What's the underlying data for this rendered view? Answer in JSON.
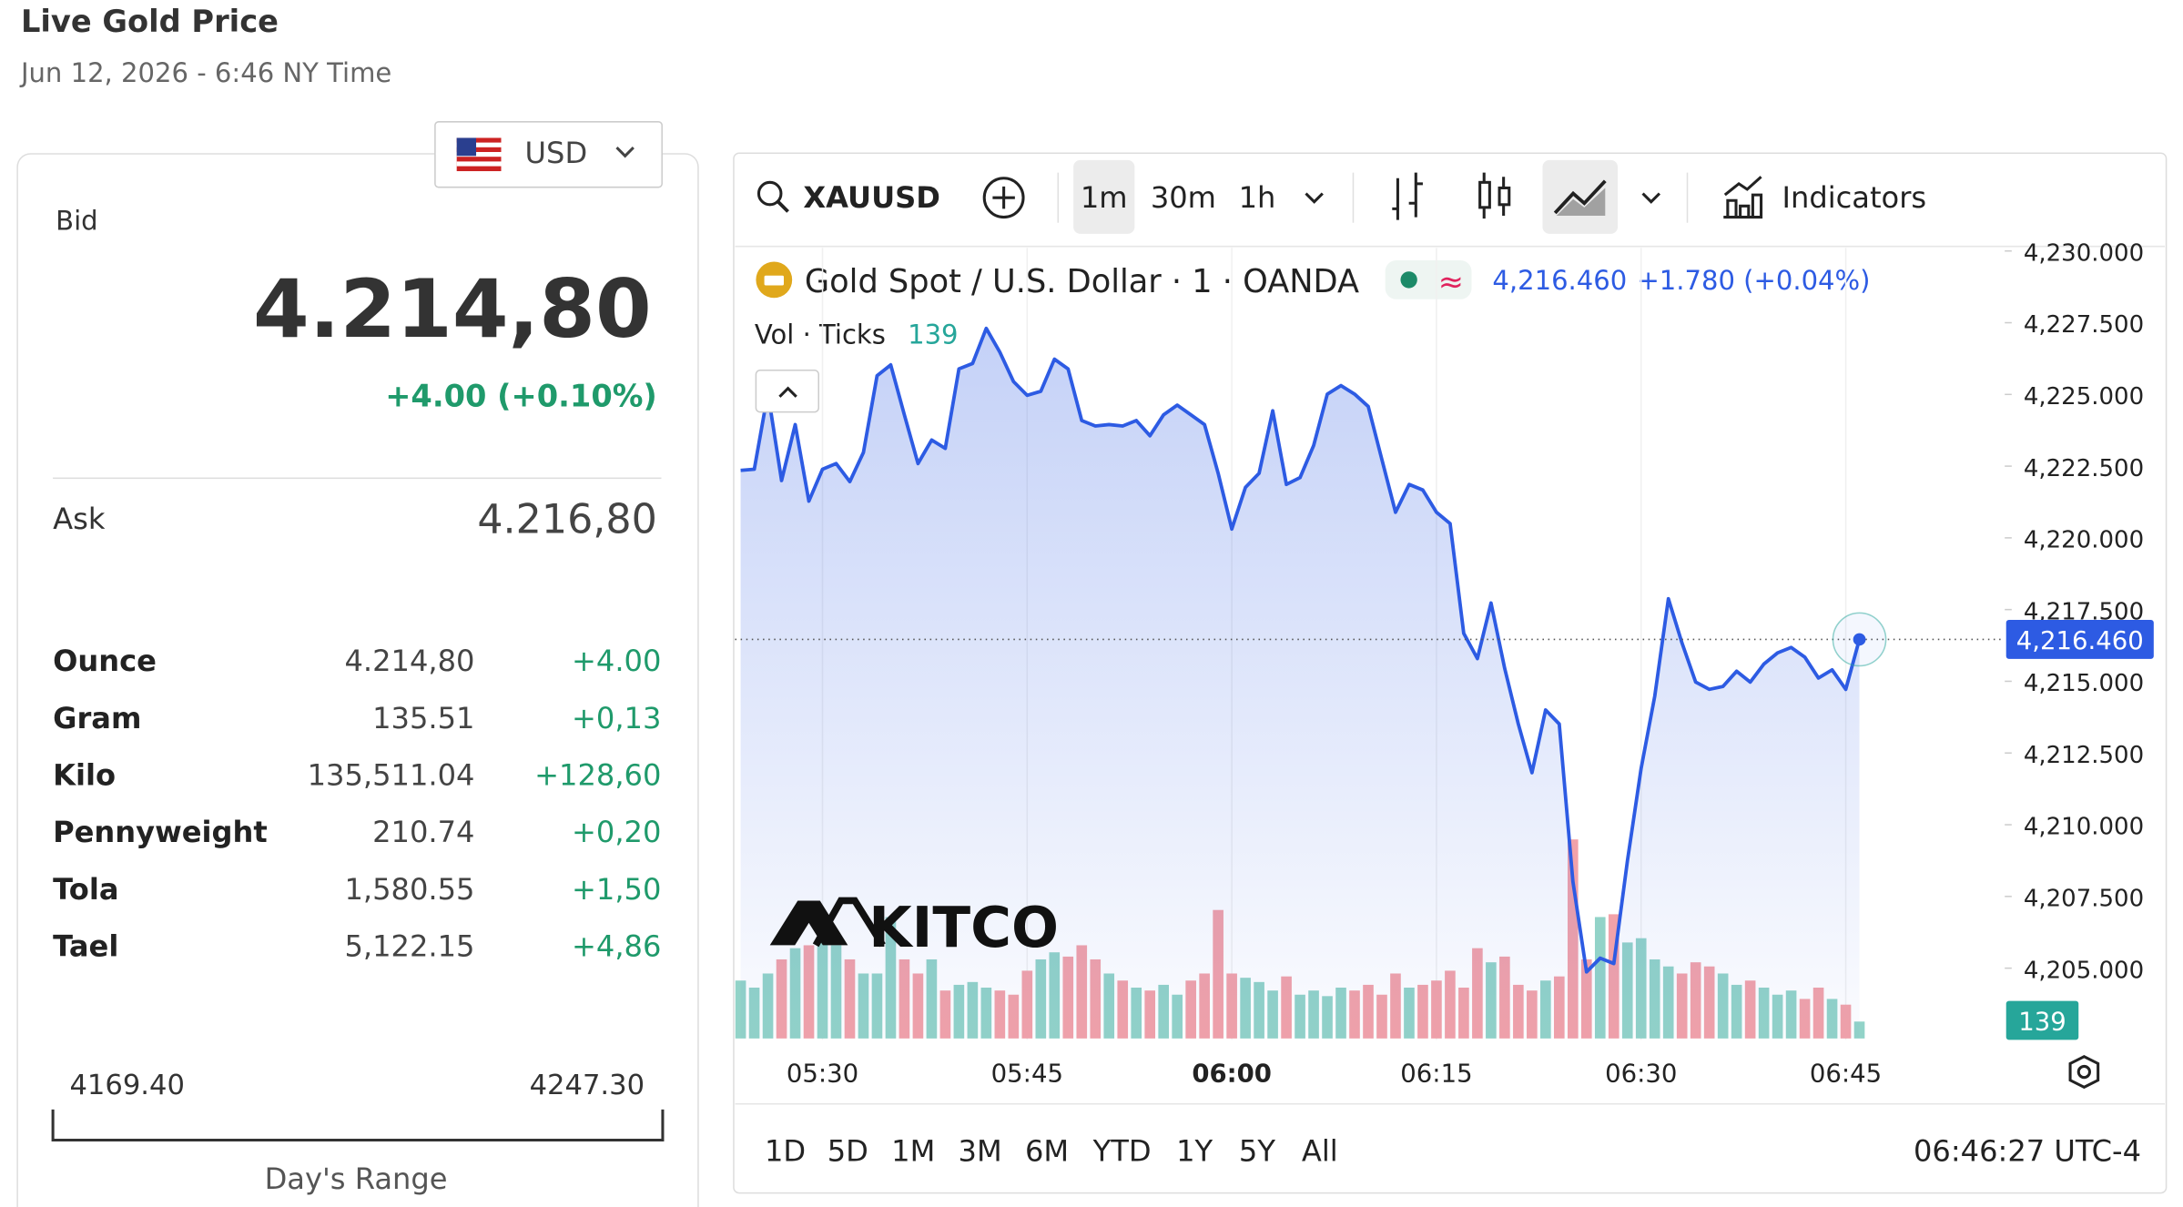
{
  "header": {
    "title": "Live Gold Price",
    "subtitle": "Jun 12, 2026 - 6:46 NY Time"
  },
  "currency": "USD",
  "quote": {
    "bid_label": "Bid",
    "bid": "4.214,80",
    "change": "+4.00 (+0.10%)",
    "ask_label": "Ask",
    "ask": "4.216,80"
  },
  "table": {
    "rows": [
      [
        "Ounce",
        "4.214,80",
        "+4.00"
      ],
      [
        "Gram",
        "135.51",
        "+0,13"
      ],
      [
        "Kilo",
        "135,511.04",
        "+128,60"
      ],
      [
        "Pennyweight",
        "210.74",
        "+0,20"
      ],
      [
        "Tola",
        "1,580.55",
        "+1,50"
      ],
      [
        "Tael",
        "5,122.15",
        "+4,86"
      ]
    ]
  },
  "range": {
    "low": "4169.40",
    "high": "4247.30",
    "label": "Day's Range"
  },
  "toolbar": {
    "symbol": "XAUUSD",
    "intervals": [
      "1m",
      "30m",
      "1h"
    ],
    "indicators": "Indicators"
  },
  "legend": {
    "title": "Gold Spot / U.S. Dollar · 1 · OANDA",
    "change": "+1.780 (+0.04%)",
    "volume_label": "Vol · Ticks"
  },
  "logo": "KITCO",
  "ranges": [
    "1D",
    "5D",
    "1M",
    "3M",
    "6M",
    "YTD",
    "1Y",
    "5Y",
    "All"
  ],
  "clock": "06:46:27 UTC-4",
  "chart_data": {
    "type": "line",
    "categories": [
      null,
      null,
      null,
      null,
      null,
      null,
      "05:30",
      null,
      null,
      null,
      null,
      null,
      null,
      null,
      null,
      null,
      null,
      null,
      null,
      null,
      null,
      "05:45",
      null,
      null,
      null,
      null,
      null,
      null,
      null,
      null,
      null,
      null,
      null,
      null,
      null,
      null,
      "06:00",
      null,
      null,
      null,
      null,
      null,
      null,
      null,
      null,
      null,
      null,
      null,
      null,
      null,
      null,
      "06:15",
      null,
      null,
      null,
      null,
      null,
      null,
      null,
      null,
      null,
      null,
      null,
      null,
      null,
      null,
      "06:30",
      null,
      null,
      null,
      null,
      null,
      null,
      null,
      null,
      null,
      null,
      null,
      null,
      null,
      null,
      "06:45",
      null
    ],
    "series": [
      {
        "color": "#2d5be3",
        "values": [
          4222.35,
          4222.39,
          4225.06,
          4222.0,
          4223.95,
          4221.28,
          4222.39,
          4222.59,
          4221.96,
          4222.98,
          4225.65,
          4226.03,
          4224.29,
          4222.59,
          4223.41,
          4223.12,
          4225.89,
          4226.08,
          4227.3,
          4226.47,
          4225.45,
          4224.97,
          4225.11,
          4226.23,
          4225.89,
          4224.09,
          4223.9,
          4223.95,
          4223.9,
          4224.09,
          4223.56,
          4224.29,
          4224.63,
          4224.29,
          4223.95,
          4222.25,
          4220.31,
          4221.76,
          4222.25,
          4224.43,
          4221.86,
          4222.1,
          4223.22,
          4225.01,
          4225.31,
          4225.01,
          4224.58,
          4222.73,
          4220.89,
          4221.86,
          4221.67,
          4220.89,
          4220.5,
          4216.67,
          4215.79,
          4217.73,
          4215.45,
          4213.51,
          4211.81,
          4214.0,
          4213.51,
          4208.02,
          4204.87,
          4205.35,
          4205.16,
          4208.75,
          4211.96,
          4214.48,
          4217.88,
          4216.33,
          4214.97,
          4214.72,
          4214.82,
          4215.35,
          4214.97,
          4215.6,
          4215.99,
          4216.18,
          4215.84,
          4215.11,
          4215.4,
          4214.72,
          4216.46
        ],
        "value_labels": [
          null,
          null,
          null,
          null,
          null,
          null,
          null,
          null,
          null,
          null,
          null,
          null,
          null,
          null,
          null,
          null,
          null,
          null,
          null,
          null,
          null,
          null,
          null,
          null,
          null,
          null,
          null,
          null,
          null,
          null,
          null,
          null,
          null,
          null,
          null,
          null,
          null,
          null,
          null,
          null,
          null,
          null,
          null,
          null,
          null,
          null,
          null,
          null,
          null,
          null,
          null,
          null,
          null,
          null,
          null,
          null,
          null,
          null,
          null,
          null,
          null,
          null,
          null,
          null,
          null,
          null,
          null,
          null,
          null,
          null,
          null,
          null,
          null,
          null,
          null,
          null,
          null,
          null,
          null,
          null,
          null,
          null,
          "4,216.460"
        ]
      },
      {
        "name": "Vol · Ticks",
        "up_color": "#92d3c8",
        "down_color": "#f2a2a9",
        "tag_color": "#26a69a",
        "values": [
          476,
          418,
          534,
          650,
          742,
          766,
          882,
          766,
          650,
          534,
          534,
          998,
          650,
          534,
          650,
          394,
          441,
          464,
          418,
          394,
          360,
          557,
          650,
          708,
          673,
          766,
          650,
          534,
          476,
          418,
          394,
          441,
          360,
          476,
          534,
          1056,
          534,
          499,
          464,
          394,
          510,
          360,
          394,
          348,
          418,
          394,
          441,
          360,
          534,
          418,
          441,
          476,
          557,
          418,
          742,
          626,
          673,
          441,
          394,
          476,
          510,
          1636,
          650,
          998,
          1021,
          789,
          824,
          650,
          592,
          534,
          626,
          592,
          534,
          441,
          476,
          418,
          360,
          394,
          325,
          418,
          325,
          278,
          139
        ]
      }
    ],
    "ylim": [
      4202.5,
      4230.5
    ],
    "yticks": [
      {
        "value": 4205,
        "label": "4,205.000"
      },
      {
        "value": 4207.5,
        "label": "4,207.500"
      },
      {
        "value": 4210,
        "label": "4,210.000"
      },
      {
        "value": 4212.5,
        "label": "4,212.500"
      },
      {
        "value": 4215,
        "label": "4,215.000"
      },
      {
        "value": 4217.5,
        "label": "4,217.500"
      },
      {
        "value": 4220,
        "label": "4,220.000"
      },
      {
        "value": 4222.5,
        "label": "4,222.500"
      },
      {
        "value": 4225,
        "label": "4,225.000"
      },
      {
        "value": 4227.5,
        "label": "4,227.500"
      },
      {
        "value": 4230,
        "label": "4,230.000"
      }
    ]
  }
}
